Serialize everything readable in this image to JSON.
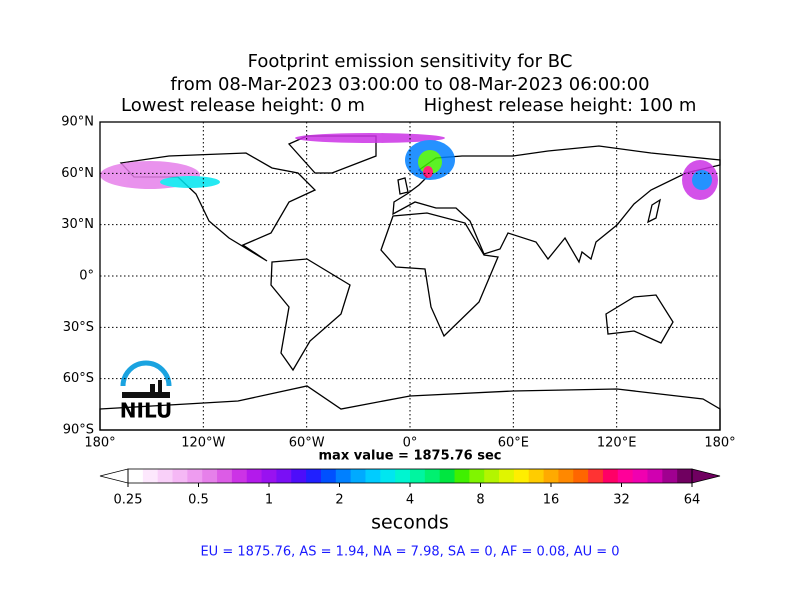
{
  "map": {
    "title_lines": [
      "Footprint emission sensitivity for BC",
      "from 08-Mar-2023 03:00:00 to 08-Mar-2023 06:00:00"
    ],
    "lowest_release": "Lowest release height: 0 m",
    "highest_release": "Highest release height: 100 m",
    "lonlim": [
      -180,
      180
    ],
    "latlim": [
      -90,
      90
    ],
    "lonticks": [
      {
        "value": -180,
        "label": "180°"
      },
      {
        "value": -120,
        "label": "120°W"
      },
      {
        "value": -60,
        "label": "60°W"
      },
      {
        "value": 0,
        "label": "0°"
      },
      {
        "value": 60,
        "label": "60°E"
      },
      {
        "value": 120,
        "label": "120°E"
      },
      {
        "value": 180,
        "label": "180°"
      }
    ],
    "latticks": [
      {
        "value": 90,
        "label": "90°N"
      },
      {
        "value": 60,
        "label": "60°N"
      },
      {
        "value": 30,
        "label": "30°N"
      },
      {
        "value": 0,
        "label": "0°"
      },
      {
        "value": -30,
        "label": "30°S"
      },
      {
        "value": -60,
        "label": "60°S"
      },
      {
        "value": -90,
        "label": "90°S"
      }
    ],
    "max_value": "max value = 1875.76 sec",
    "logo": "NILU",
    "regions": "EU = 1875.76,  AS = 1.94,  NA = 7.98,  SA = 0,  AF = 0.08,  AU = 0"
  },
  "colorbar": {
    "label": "seconds",
    "log": true,
    "lim": [
      0.25,
      64
    ],
    "ticks": [
      0.25,
      0.5,
      1,
      2,
      4,
      8,
      16,
      32,
      64
    ],
    "colors": [
      "#ffffff",
      "#fde8fd",
      "#f9d0f9",
      "#f5b8f5",
      "#ee9cf0",
      "#e680ea",
      "#dc5ce6",
      "#cc33e6",
      "#b31aeb",
      "#9912f0",
      "#7a0ff5",
      "#4d0dfa",
      "#2020ff",
      "#0050ff",
      "#0080ff",
      "#00aaff",
      "#00ccff",
      "#00e6f0",
      "#00f5d0",
      "#00f5a0",
      "#00f070",
      "#00e640",
      "#40f000",
      "#80f500",
      "#b3f500",
      "#e0f500",
      "#ffee00",
      "#ffcc00",
      "#ffaa00",
      "#ff8800",
      "#ff6600",
      "#ff3333",
      "#ff0066",
      "#ff0099",
      "#f000b0",
      "#d000b0",
      "#a00090",
      "#700060"
    ]
  }
}
